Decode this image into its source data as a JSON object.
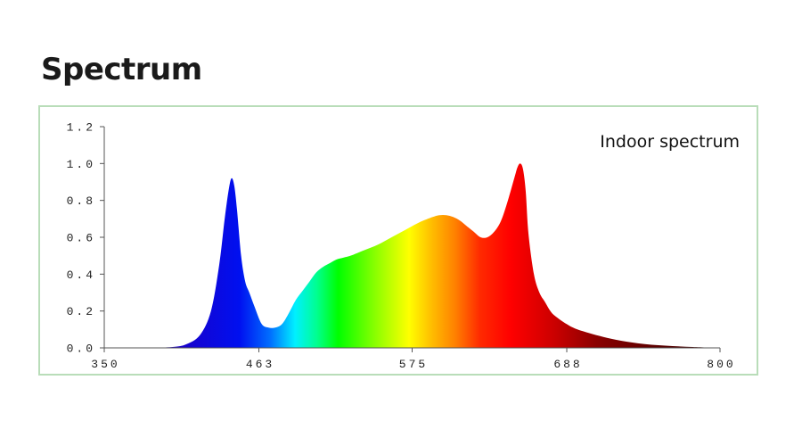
{
  "page": {
    "title": "Spectrum"
  },
  "chart_data": {
    "type": "area",
    "title": "",
    "annotation": "Indoor spectrum",
    "xlabel": "",
    "ylabel": "",
    "xlim": [
      350,
      800
    ],
    "ylim": [
      0,
      1.2
    ],
    "x_ticks": [
      "350",
      "463",
      "575",
      "688",
      "800"
    ],
    "x_tick_values": [
      350,
      463,
      575,
      688,
      800
    ],
    "y_ticks": [
      "0.0",
      "0.2",
      "0.4",
      "0.6",
      "0.8",
      "1.0",
      "1.2"
    ],
    "y_tick_values": [
      0,
      0.2,
      0.4,
      0.6,
      0.8,
      1.0,
      1.2
    ],
    "grid": false,
    "fill": "wavelength-colored gradient (violet-blue to deep red)",
    "series": [
      {
        "x": [
          350,
          380,
          400,
          410,
          420,
          428,
          434,
          438,
          441,
          443,
          445,
          447,
          450,
          453,
          456,
          460,
          465,
          470,
          475,
          480,
          485,
          490,
          495,
          500,
          505,
          510,
          515,
          520,
          525,
          530,
          540,
          550,
          560,
          570,
          580,
          590,
          595,
          600,
          605,
          610,
          615,
          620,
          625,
          630,
          635,
          640,
          645,
          650,
          652,
          654,
          656,
          658,
          660,
          664,
          668,
          672,
          676,
          680,
          690,
          700,
          720,
          740,
          760,
          780,
          800
        ],
        "y": [
          0.0,
          0.0,
          0.005,
          0.02,
          0.07,
          0.2,
          0.45,
          0.7,
          0.86,
          0.92,
          0.88,
          0.75,
          0.5,
          0.36,
          0.3,
          0.22,
          0.13,
          0.11,
          0.11,
          0.13,
          0.19,
          0.26,
          0.31,
          0.36,
          0.41,
          0.44,
          0.46,
          0.48,
          0.49,
          0.5,
          0.53,
          0.56,
          0.6,
          0.64,
          0.68,
          0.71,
          0.72,
          0.72,
          0.71,
          0.69,
          0.66,
          0.63,
          0.6,
          0.6,
          0.63,
          0.69,
          0.8,
          0.93,
          0.98,
          1.0,
          0.97,
          0.85,
          0.62,
          0.4,
          0.3,
          0.25,
          0.2,
          0.17,
          0.12,
          0.09,
          0.05,
          0.025,
          0.012,
          0.005,
          0.0
        ]
      }
    ]
  }
}
